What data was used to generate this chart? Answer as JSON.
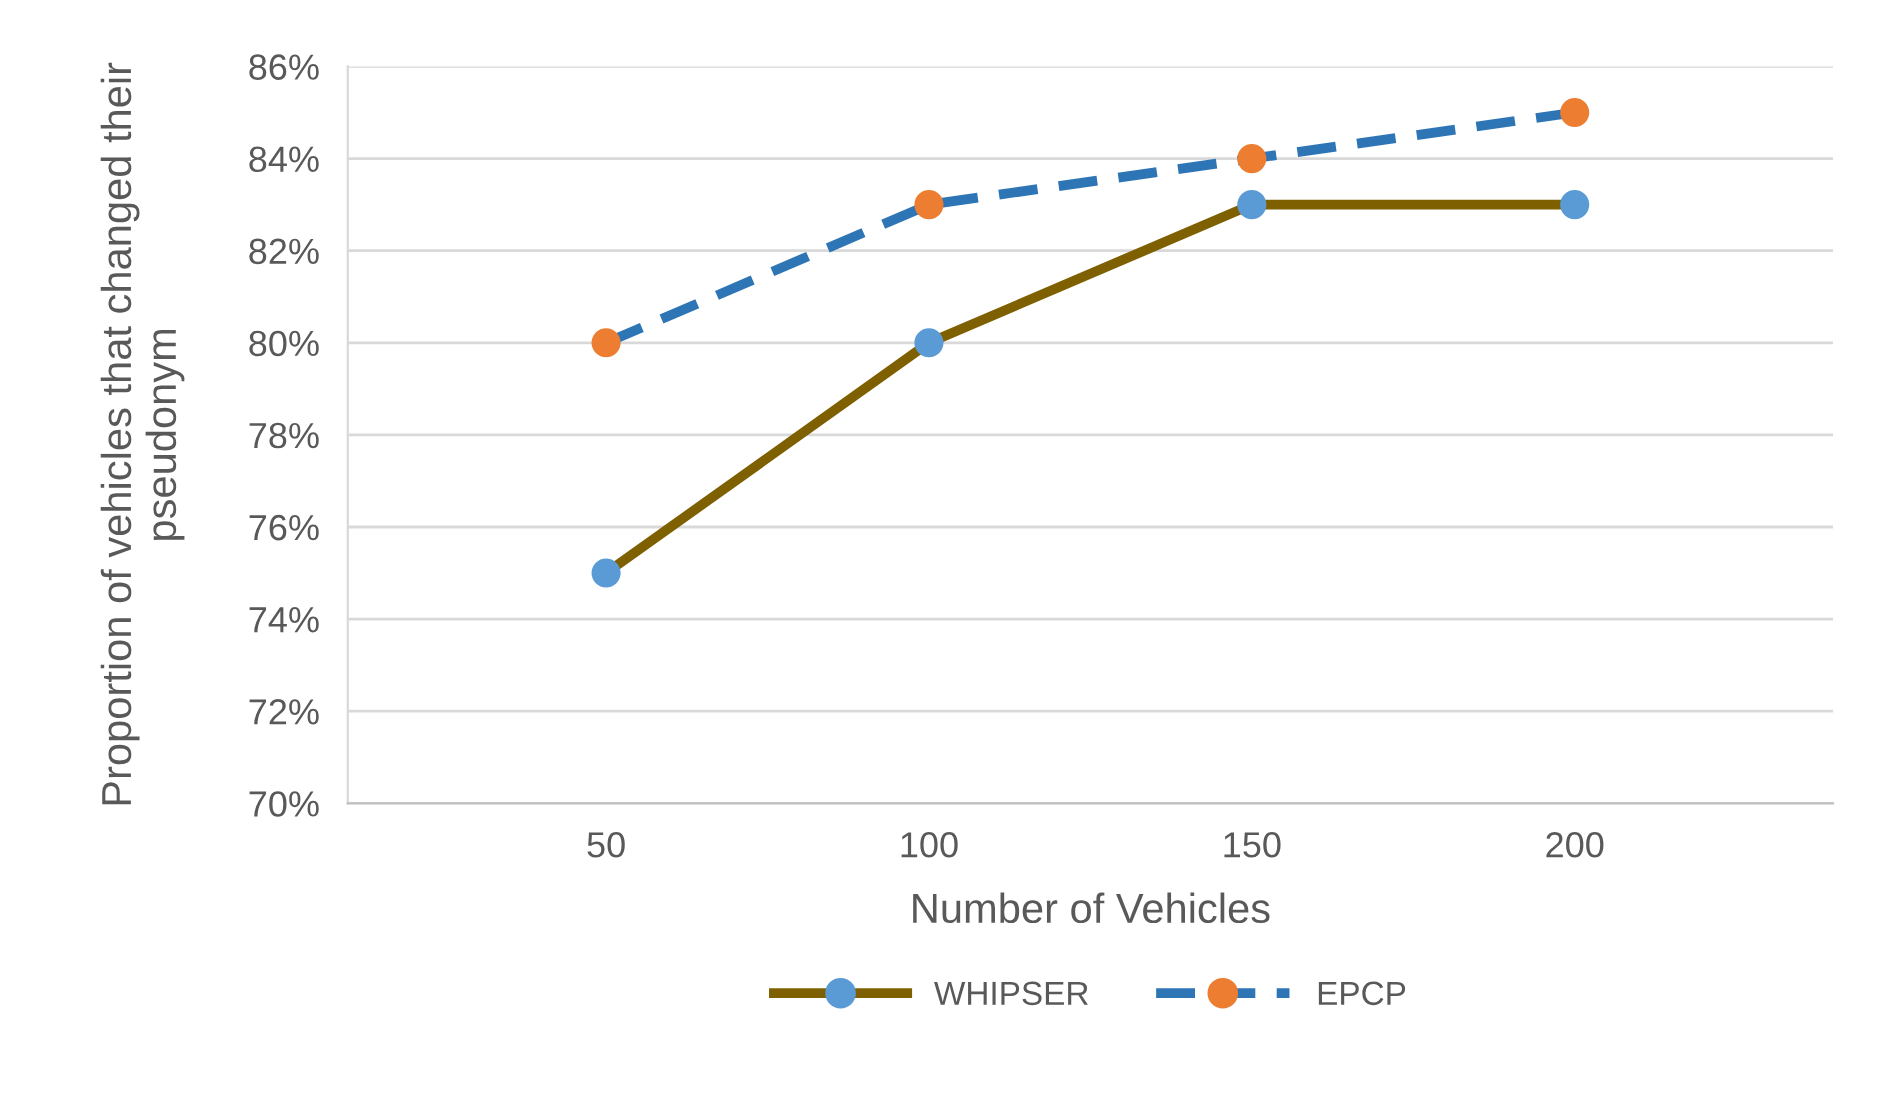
{
  "chart_data": {
    "type": "line",
    "xlabel": "Number of Vehicles",
    "ylabel": "Proportion of vehicles that changed their pseudonym",
    "categories": [
      "50",
      "100",
      "150",
      "200"
    ],
    "series": [
      {
        "name": "WHIPSER",
        "color": "#7f6000",
        "colors": [
          "#5b9bd5",
          "#5b9bd5",
          "#5b9bd5",
          "#5b9bd5"
        ],
        "line_style": "solid",
        "values": [
          75,
          80,
          83,
          83
        ]
      },
      {
        "name": "EPCP",
        "color": "#2e75b6",
        "colors": [
          "#ed7d31",
          "#ed7d31",
          "#ed7d31",
          "#ed7d31"
        ],
        "line_style": "dashed",
        "values": [
          80,
          83,
          84,
          85
        ]
      }
    ],
    "ylim": [
      70,
      86
    ],
    "yticks": [
      {
        "value": 70,
        "label": "70%"
      },
      {
        "value": 72,
        "label": "72%"
      },
      {
        "value": 74,
        "label": "74%"
      },
      {
        "value": 76,
        "label": "76%"
      },
      {
        "value": 78,
        "label": "78%"
      },
      {
        "value": 80,
        "label": "80%"
      },
      {
        "value": 82,
        "label": "82%"
      },
      {
        "value": 84,
        "label": "84%"
      },
      {
        "value": 86,
        "label": "86%"
      }
    ],
    "grid": "y",
    "legend": "bottom",
    "marker": "circle"
  }
}
